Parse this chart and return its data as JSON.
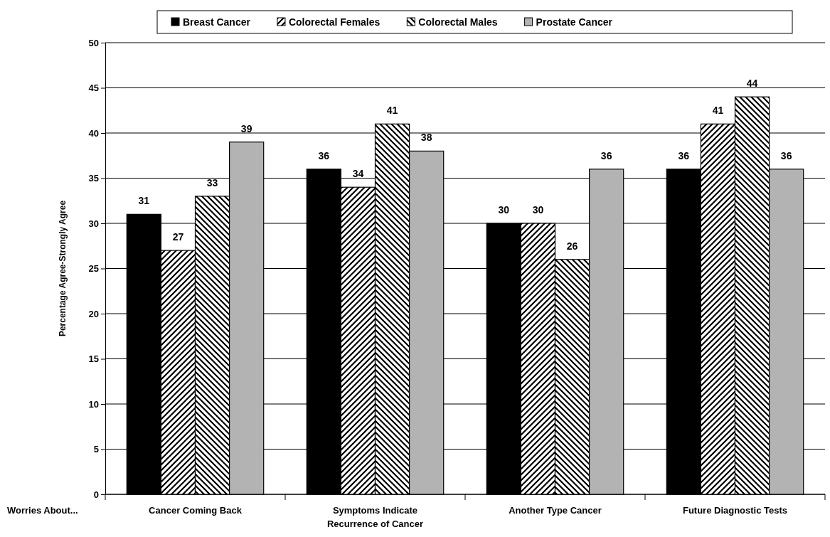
{
  "chart_data": {
    "type": "bar",
    "ylabel": "Percentage Agree-Strongly Agree",
    "xlabel": "Worries About...",
    "categories": [
      "Cancer Coming Back",
      "Symptoms Indicate Recurrence of Cancer",
      "Another Type Cancer",
      "Future Diagnostic Tests"
    ],
    "series": [
      {
        "name": "Breast Cancer",
        "color": "#000000",
        "values": [
          31,
          36,
          30,
          36
        ]
      },
      {
        "name": "Colorectal Females",
        "color": "#000000",
        "values": [
          27,
          34,
          30,
          41
        ]
      },
      {
        "name": "Colorectal Males",
        "color": "#000000",
        "values": [
          33,
          41,
          26,
          44
        ]
      },
      {
        "name": "Prostate Cancer",
        "color": "#b3b3b3",
        "values": [
          39,
          38,
          36,
          36
        ]
      }
    ],
    "ylim": [
      0,
      50
    ],
    "yticks": [
      0,
      5,
      10,
      15,
      20,
      25,
      30,
      35,
      40,
      45,
      50
    ],
    "grid": "y",
    "legend": "top",
    "data_labels": true
  }
}
